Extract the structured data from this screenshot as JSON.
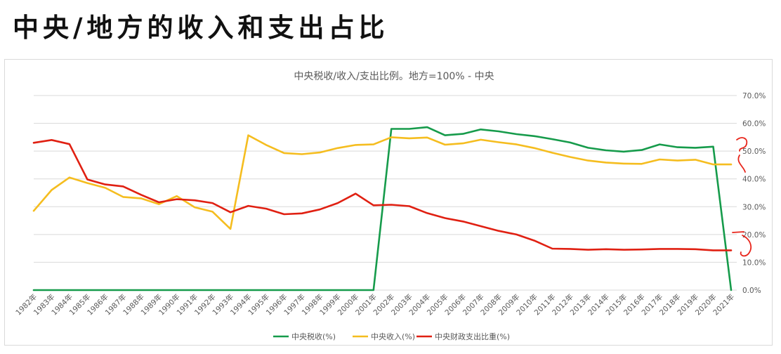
{
  "page": {
    "title": "中央/地方的收入和支出占比"
  },
  "colors": {
    "tax": "#169b4b",
    "revenue": "#f5bd1f",
    "expenditure": "#e02012",
    "grid": "#d9d9d9",
    "annotation": "#e8241a"
  },
  "chart_data": {
    "type": "line",
    "title": "中央税收/收入/支出比例。地方=100% - 中央",
    "xlabel": "",
    "ylabel": "",
    "ylim": [
      0,
      0.7
    ],
    "yticks": [
      "0.0%",
      "10.0%",
      "20.0%",
      "30.0%",
      "40.0%",
      "50.0%",
      "60.0%",
      "70.0%"
    ],
    "grid": true,
    "legend_position": "bottom",
    "categories": [
      "1982年",
      "1983年",
      "1984年",
      "1985年",
      "1986年",
      "1987年",
      "1988年",
      "1989年",
      "1990年",
      "1991年",
      "1992年",
      "1993年",
      "1994年",
      "1995年",
      "1996年",
      "1997年",
      "1998年",
      "1999年",
      "2000年",
      "2001年",
      "2002年",
      "2003年",
      "2004年",
      "2005年",
      "2006年",
      "2007年",
      "2008年",
      "2009年",
      "2010年",
      "2011年",
      "2012年",
      "2013年",
      "2014年",
      "2015年",
      "2016年",
      "2017年",
      "2018年",
      "2019年",
      "2020年",
      "2021年"
    ],
    "series": [
      {
        "name": "中央税收(%)",
        "color": "#169b4b",
        "values": [
          0,
          0,
          0,
          0,
          0,
          0,
          0,
          0,
          0,
          0,
          0,
          0,
          0,
          0,
          0,
          0,
          0,
          0,
          0,
          0,
          0.58,
          0.58,
          0.586,
          0.557,
          0.562,
          0.578,
          0.571,
          0.561,
          0.554,
          0.543,
          0.531,
          0.512,
          0.503,
          0.498,
          0.504,
          0.524,
          0.514,
          0.512,
          0.516,
          0
        ]
      },
      {
        "name": "中央收入(%)",
        "color": "#f5bd1f",
        "values": [
          0.285,
          0.36,
          0.405,
          0.385,
          0.368,
          0.335,
          0.33,
          0.309,
          0.338,
          0.298,
          0.282,
          0.22,
          0.557,
          0.522,
          0.493,
          0.489,
          0.495,
          0.511,
          0.522,
          0.524,
          0.55,
          0.546,
          0.549,
          0.523,
          0.528,
          0.541,
          0.532,
          0.524,
          0.511,
          0.494,
          0.479,
          0.466,
          0.459,
          0.455,
          0.454,
          0.47,
          0.466,
          0.469,
          0.452,
          0.452
        ]
      },
      {
        "name": "中央财政支出比重(%)",
        "color": "#e02012",
        "values": [
          0.53,
          0.54,
          0.525,
          0.398,
          0.38,
          0.373,
          0.343,
          0.316,
          0.327,
          0.323,
          0.313,
          0.28,
          0.303,
          0.293,
          0.273,
          0.276,
          0.29,
          0.313,
          0.347,
          0.305,
          0.307,
          0.302,
          0.277,
          0.259,
          0.247,
          0.23,
          0.213,
          0.2,
          0.178,
          0.149,
          0.148,
          0.145,
          0.147,
          0.145,
          0.146,
          0.148,
          0.148,
          0.147,
          0.143,
          0.143
        ]
      }
    ]
  }
}
